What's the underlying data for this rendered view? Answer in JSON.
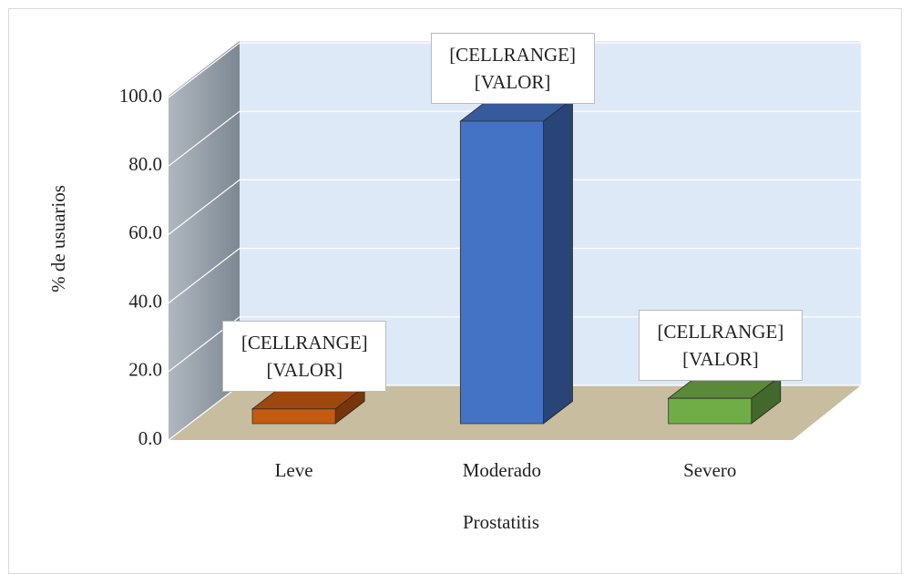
{
  "chart_data": {
    "type": "bar3d",
    "categories": [
      "Leve",
      "Moderado",
      "Severo"
    ],
    "series": [
      {
        "values": [
          4.3,
          88.3,
          7.4
        ],
        "colors": [
          "#c55a11",
          "#4472c4",
          "#70ad47"
        ],
        "value_labels": [
          "[CELLRANGE]\n[VALOR]",
          "[CELLRANGE]\n[VALOR]",
          "[CELLRANGE]\n[VALOR]"
        ]
      }
    ],
    "ylim": [
      0,
      100
    ],
    "yticks": [
      {
        "value": 0,
        "label": "0.0"
      },
      {
        "value": 20,
        "label": "20.0"
      },
      {
        "value": 40,
        "label": "40.0"
      },
      {
        "value": 60,
        "label": "60.0"
      },
      {
        "value": 80,
        "label": "80.0"
      },
      {
        "value": 100,
        "label": "100.0"
      }
    ],
    "ylabel": "% de usuarios",
    "xlabel": "Prostatitis",
    "grid": true
  }
}
